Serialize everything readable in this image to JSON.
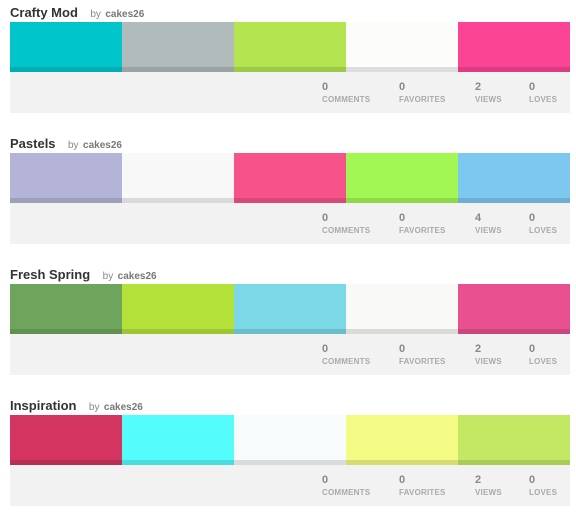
{
  "by_label": "by",
  "stat_labels": {
    "comments": "COMMENTS",
    "favorites": "FAVORITES",
    "views": "VIEWS",
    "loves": "LOVES"
  },
  "palettes": [
    {
      "title": "Crafty Mod",
      "author": "cakes26",
      "colors": [
        "#00C6CC",
        "#B1BBBB",
        "#B4E550",
        "#FCFCFA",
        "#FC4494"
      ],
      "comments": "0",
      "favorites": "0",
      "views": "2",
      "loves": "0"
    },
    {
      "title": "Pastels",
      "author": "cakes26",
      "colors": [
        "#B4B4D8",
        "#F8F8F8",
        "#F6538A",
        "#A2F753",
        "#7CC8EF"
      ],
      "comments": "0",
      "favorites": "0",
      "views": "4",
      "loves": "0"
    },
    {
      "title": "Fresh Spring",
      "author": "cakes26",
      "colors": [
        "#6FA45C",
        "#B4E23A",
        "#7CD8E6",
        "#F9F9F7",
        "#E85090"
      ],
      "comments": "0",
      "favorites": "0",
      "views": "2",
      "loves": "0"
    },
    {
      "title": "Inspiration",
      "author": "cakes26",
      "colors": [
        "#D33560",
        "#54FDFC",
        "#F8FBFB",
        "#F3FB84",
        "#C2E864"
      ],
      "comments": "0",
      "favorites": "0",
      "views": "2",
      "loves": "0"
    }
  ]
}
